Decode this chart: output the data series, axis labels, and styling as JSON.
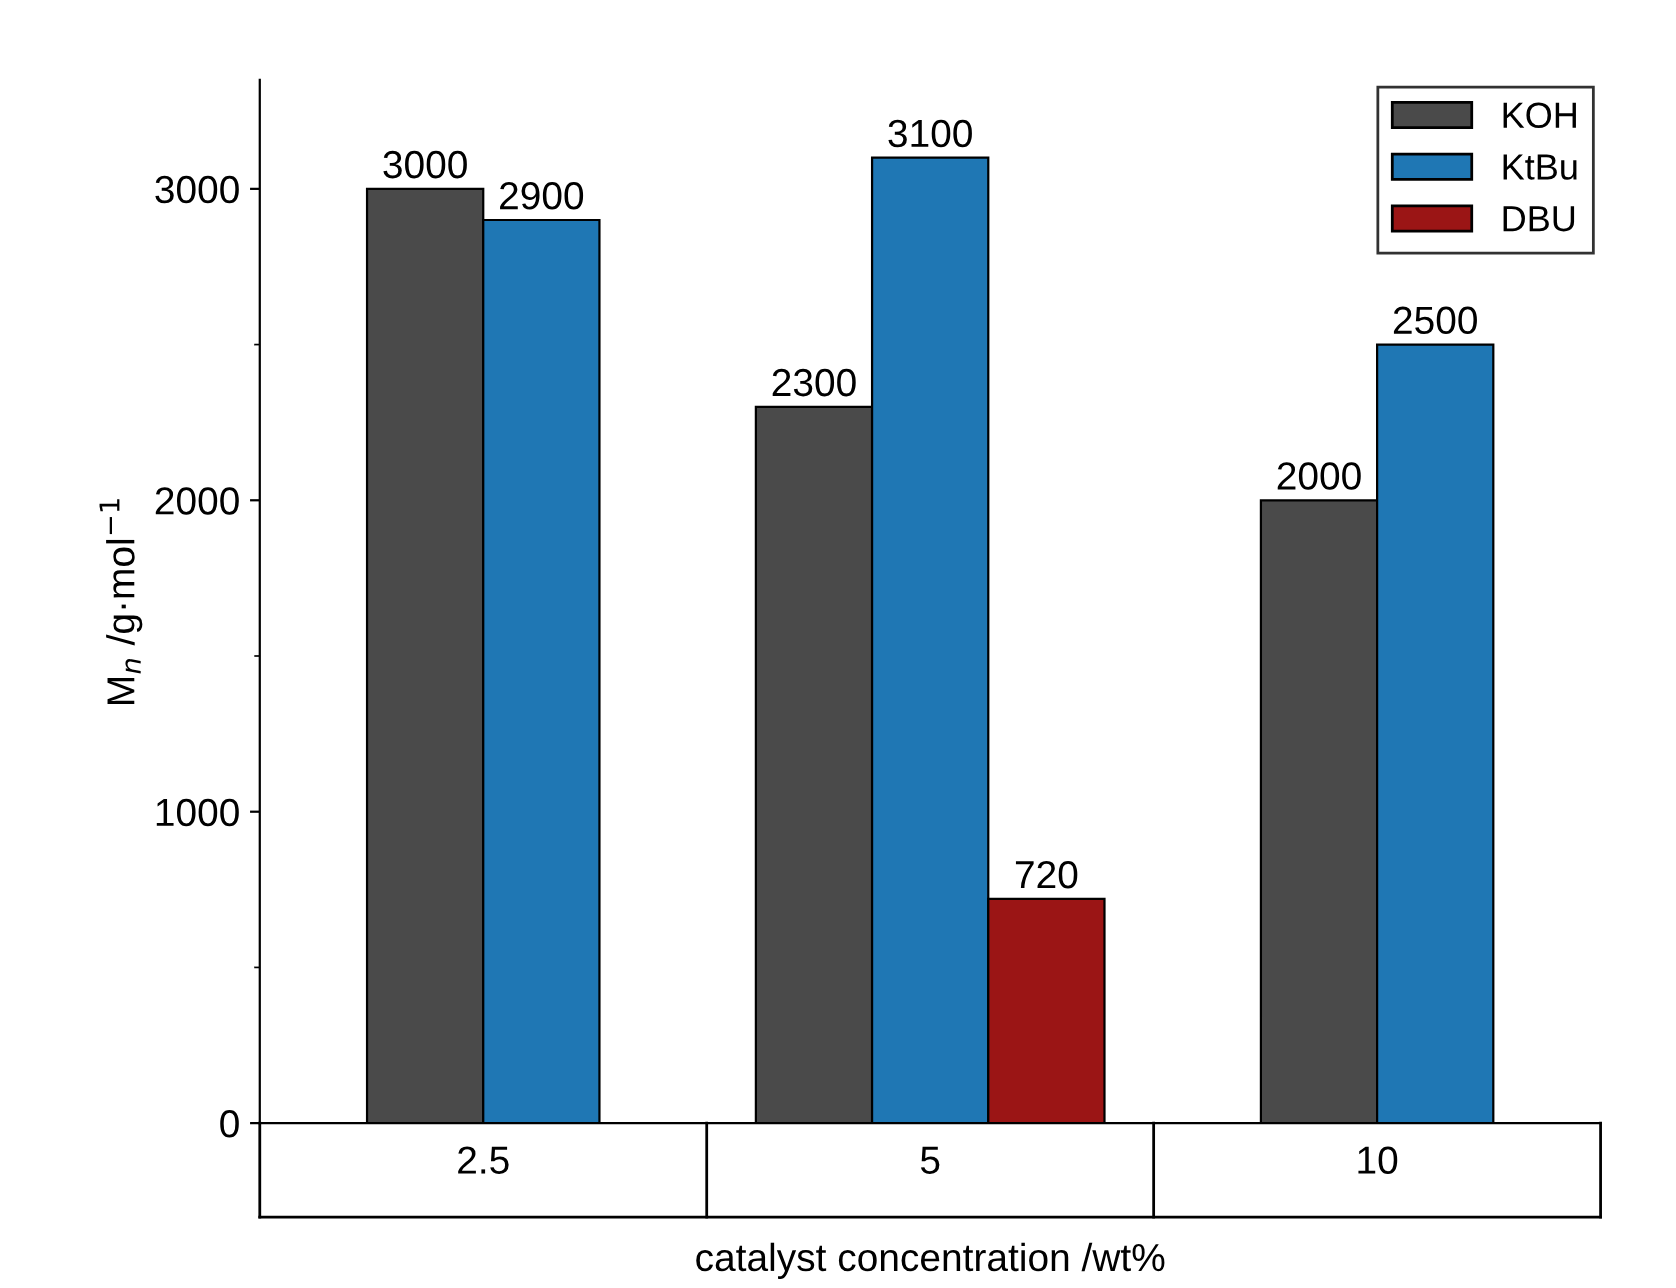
{
  "chart_data": {
    "type": "bar",
    "xlabel": "catalyst concentration /wt%",
    "ylabel": "M$_{n}$ /g·mol$^{−1}$",
    "categories": [
      "2.5",
      "5",
      "10"
    ],
    "series": [
      {
        "name": "KOH",
        "color": "#4a4a4a",
        "values": [
          3000,
          2300,
          2000
        ]
      },
      {
        "name": "KtBu",
        "color": "#1f77b4",
        "values": [
          2900,
          3100,
          2500
        ]
      },
      {
        "name": "DBU",
        "color": "#9b1515",
        "values": [
          null,
          720,
          null
        ]
      }
    ],
    "ylim": [
      0,
      3350
    ],
    "yticks": [
      0,
      1000,
      2000,
      3000
    ],
    "data_labels": true,
    "legend": "top right",
    "grid": false
  }
}
